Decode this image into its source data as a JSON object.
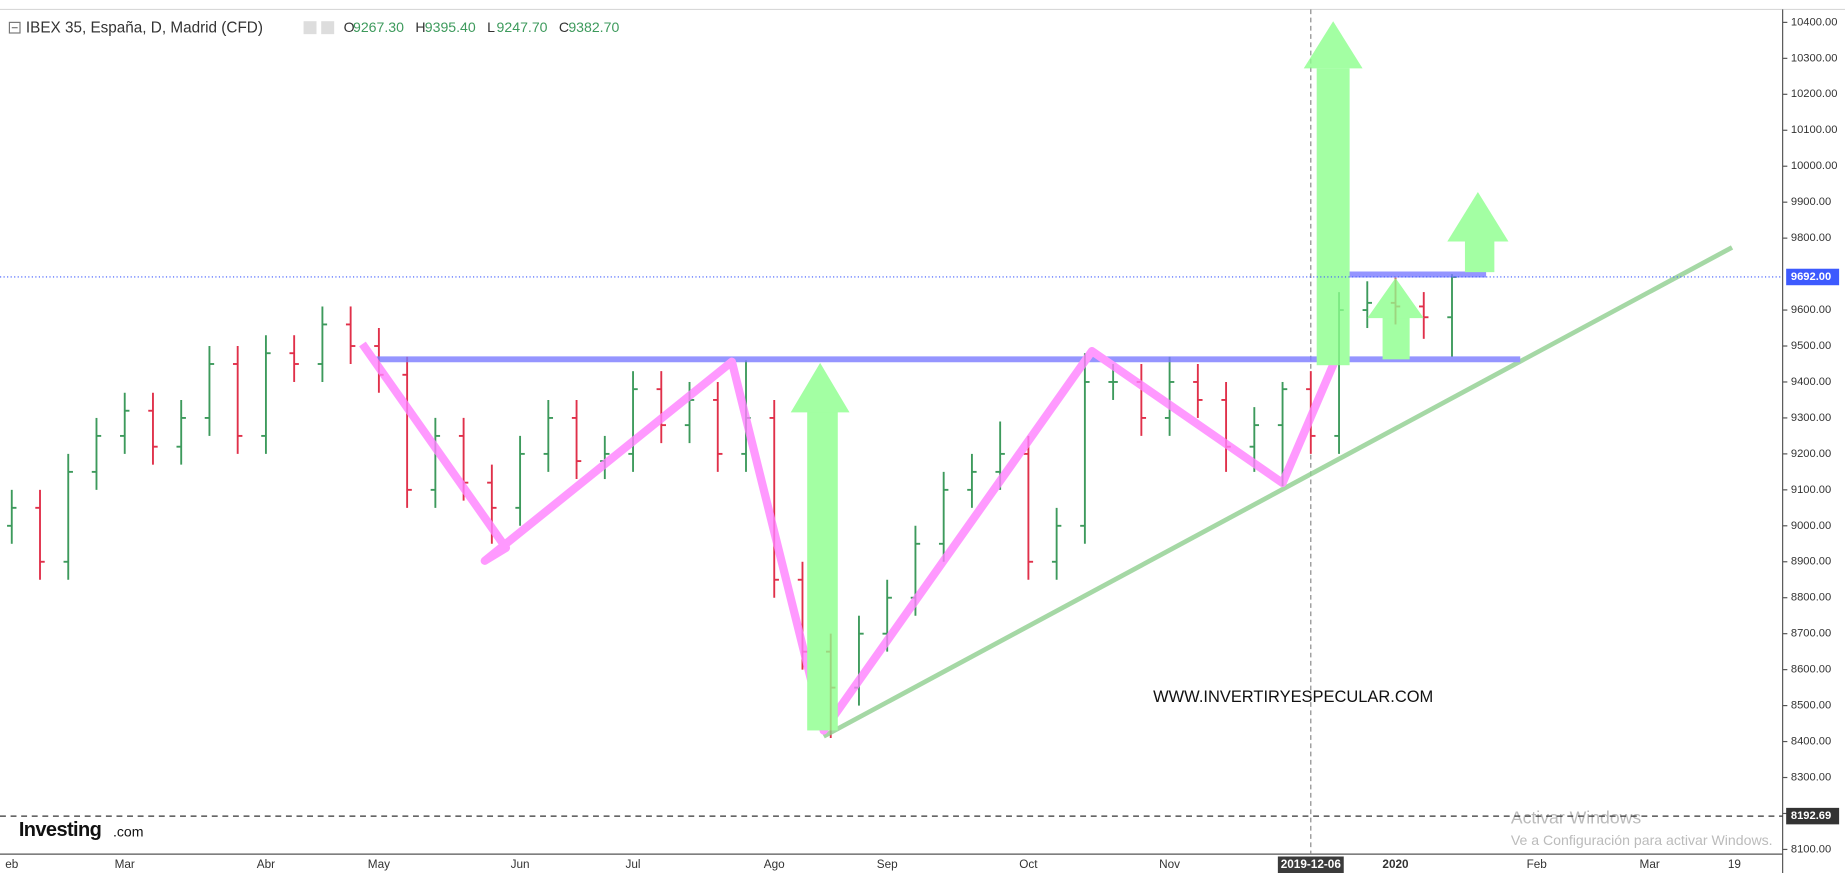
{
  "chart_data": {
    "type": "ohlc",
    "title": "IBEX 35, España, D, Madrid (CFD)",
    "readout": [
      {
        "key": "O",
        "value": 9267.3,
        "label": "9267.30"
      },
      {
        "key": "H",
        "value": 9395.4,
        "label": "9395.40"
      },
      {
        "key": "L",
        "value": 9247.7,
        "label": "9247.70"
      },
      {
        "key": "C",
        "value": 9382.7,
        "label": "9382.70"
      }
    ],
    "categories": [
      "eb",
      null,
      null,
      null,
      "Mar",
      null,
      null,
      null,
      null,
      "Abr",
      null,
      null,
      null,
      "May",
      null,
      null,
      null,
      null,
      "Jun",
      null,
      null,
      null,
      "Jul",
      null,
      null,
      null,
      null,
      "Ago",
      null,
      null,
      null,
      "Sep",
      null,
      null,
      null,
      null,
      "Oct",
      null,
      null,
      null,
      null,
      "Nov",
      null,
      null,
      null,
      null,
      "2019-12-06",
      null,
      null,
      "2020",
      null,
      null,
      null,
      null,
      "Feb",
      null,
      null,
      null,
      "Mar",
      null,
      null,
      "19",
      null
    ],
    "open": [
      9000,
      9050,
      8900,
      9150,
      9250,
      9320,
      9220,
      9300,
      9450,
      9250,
      9480,
      9450,
      9560,
      9500,
      9420,
      9100,
      9250,
      9120,
      9050,
      9200,
      9300,
      9180,
      9200,
      9380,
      9280,
      9350,
      9200,
      9300,
      8850,
      8650,
      8550,
      8700,
      8800,
      8950,
      9100,
      9150,
      9200,
      8900,
      9000,
      9400,
      9400,
      9300,
      9400,
      9350,
      9220,
      9280,
      9380,
      9250,
      9600,
      9620,
      9610,
      9580,
      null,
      null,
      null,
      null,
      null,
      null,
      null,
      null,
      null,
      null,
      null
    ],
    "high": [
      9100,
      9100,
      9200,
      9300,
      9370,
      9370,
      9350,
      9500,
      9500,
      9530,
      9530,
      9610,
      9610,
      9550,
      9470,
      9300,
      9300,
      9170,
      9250,
      9350,
      9350,
      9250,
      9430,
      9430,
      9400,
      9400,
      9460,
      9350,
      8900,
      8700,
      8750,
      8850,
      9000,
      9150,
      9200,
      9290,
      9250,
      9050,
      9480,
      9450,
      9450,
      9470,
      9450,
      9400,
      9330,
      9400,
      9430,
      9650,
      9680,
      9690,
      9650,
      9700,
      null,
      null,
      null,
      null,
      null,
      null,
      null,
      null,
      null,
      null,
      null
    ],
    "low": [
      8950,
      8850,
      8850,
      9100,
      9200,
      9170,
      9170,
      9250,
      9200,
      9200,
      9400,
      9400,
      9450,
      9370,
      9050,
      9050,
      9070,
      8950,
      9000,
      9150,
      9130,
      9130,
      9150,
      9230,
      9230,
      9150,
      9150,
      8800,
      8600,
      8410,
      8500,
      8650,
      8750,
      8900,
      9050,
      9100,
      8850,
      8850,
      8950,
      9350,
      9250,
      9250,
      9300,
      9150,
      9150,
      9110,
      9200,
      9200,
      9550,
      9560,
      9520,
      9470,
      null,
      null,
      null,
      null,
      null,
      null,
      null,
      null,
      null,
      null,
      null
    ],
    "close": [
      9050,
      8900,
      9150,
      9250,
      9320,
      9220,
      9300,
      9450,
      9250,
      9480,
      9450,
      9560,
      9500,
      9420,
      9100,
      9250,
      9120,
      9050,
      9200,
      9300,
      9180,
      9200,
      9380,
      9280,
      9350,
      9200,
      9300,
      8850,
      8650,
      8550,
      8700,
      8800,
      8950,
      9100,
      9150,
      9200,
      8900,
      9000,
      9400,
      9400,
      9300,
      9400,
      9350,
      9220,
      9280,
      9380,
      9250,
      9600,
      9620,
      9610,
      9580,
      9692,
      null,
      null,
      null,
      null,
      null,
      null,
      null,
      null,
      null,
      null,
      null
    ],
    "up_color": "#3d9a5c",
    "down_color": "#e0304a",
    "ylim": [
      8100,
      10400
    ],
    "yticks": [
      {
        "value": 8100,
        "label": "8100.00"
      },
      {
        "value": 8200,
        "label": "8200.00"
      },
      {
        "value": 8300,
        "label": "8300.00"
      },
      {
        "value": 8400,
        "label": "8400.00"
      },
      {
        "value": 8500,
        "label": "8500.00"
      },
      {
        "value": 8600,
        "label": "8600.00"
      },
      {
        "value": 8700,
        "label": "8700.00"
      },
      {
        "value": 8800,
        "label": "8800.00"
      },
      {
        "value": 8900,
        "label": "8900.00"
      },
      {
        "value": 9000,
        "label": "9000.00"
      },
      {
        "value": 9100,
        "label": "9100.00"
      },
      {
        "value": 9200,
        "label": "9200.00"
      },
      {
        "value": 9300,
        "label": "9300.00"
      },
      {
        "value": 9400,
        "label": "9400.00"
      },
      {
        "value": 9500,
        "label": "9500.00"
      },
      {
        "value": 9600,
        "label": "9600.00"
      },
      {
        "value": 9800,
        "label": "9800.00"
      },
      {
        "value": 9900,
        "label": "9900.00"
      },
      {
        "value": 10000,
        "label": "10000.00"
      },
      {
        "value": 10100,
        "label": "10100.00"
      },
      {
        "value": 10200,
        "label": "10200.00"
      },
      {
        "value": 10300,
        "label": "10300.00"
      },
      {
        "value": 10400,
        "label": "10400.00"
      }
    ],
    "price_lines": [
      {
        "value": 9692,
        "label": "9692.00",
        "color": "#3d5afe",
        "style": "dotted"
      },
      {
        "value": 8192.69,
        "label": "8192.69",
        "color": "#333333",
        "style": "dashed"
      }
    ],
    "watermark": "WWW.INVERTIRYESPECULAR.COM",
    "logo": {
      "name": "Investing",
      "suffix": ".com"
    },
    "os_notice": {
      "title": "Activar Windows",
      "text": "Ve a Configuración para activar Windows."
    }
  }
}
